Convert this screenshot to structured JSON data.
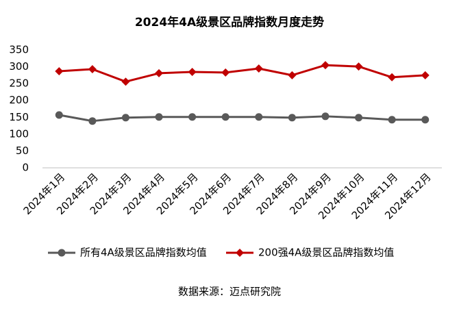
{
  "chart_data": {
    "type": "line",
    "title": "2024年4A级景区品牌指数月度走势",
    "categories": [
      "2024年1月",
      "2024年2月",
      "2024年3月",
      "2024年4月",
      "2024年5月",
      "2024年6月",
      "2024年7月",
      "2024年8月",
      "2024年9月",
      "2024年10月",
      "2024年11月",
      "2024年12月"
    ],
    "series": [
      {
        "name": "所有4A级景区品牌指数均值",
        "color": "#595959",
        "marker": "circle",
        "values": [
          157,
          139,
          149,
          151,
          151,
          151,
          151,
          149,
          153,
          149,
          143,
          143
        ]
      },
      {
        "name": "200强4A级景区品牌指数均值",
        "color": "#c00000",
        "marker": "diamond",
        "values": [
          287,
          293,
          256,
          281,
          285,
          283,
          295,
          275,
          305,
          301,
          269,
          275
        ]
      }
    ],
    "ylim": [
      0,
      350
    ],
    "yticks": [
      0,
      50,
      100,
      150,
      200,
      250,
      300,
      350
    ],
    "grid": false,
    "legend": "bottom",
    "source": "数据来源：迈点研究院"
  }
}
